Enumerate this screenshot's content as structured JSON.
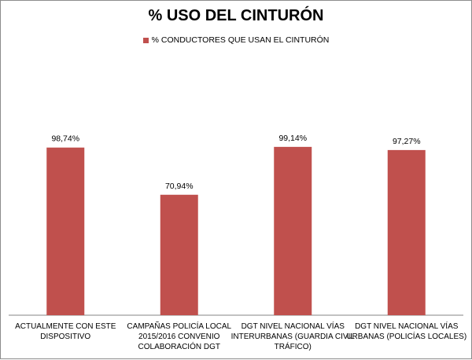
{
  "chart_data": {
    "type": "bar",
    "title": "% USO DEL CINTURÓN",
    "categories": [
      [
        "ACTUALMENTE CON ESTE",
        "DISPOSITIVO"
      ],
      [
        "CAMPAÑAS POLICÍA LOCAL",
        "2015/2016 CONVENIO",
        "COLABORACIÓN DGT"
      ],
      [
        "DGT NIVEL NACIONAL VÍAS",
        "INTERURBANAS (GUARDIA CIVIL",
        "TRÁFICO)"
      ],
      [
        "DGT NIVEL NACIONAL VÍAS",
        "URBANAS (POLICÍAS LOCALES)"
      ]
    ],
    "series": [
      {
        "name": "% CONDUCTORES QUE USAN EL CINTURÓN",
        "values": [
          98.74,
          70.94,
          99.14,
          97.27
        ],
        "labels": [
          "98,74%",
          "70,94%",
          "99,14%",
          "97,27%"
        ],
        "color": "#c0504d"
      }
    ],
    "ylim": [
      0,
      125
    ],
    "grid": false,
    "legend_position": "top"
  }
}
